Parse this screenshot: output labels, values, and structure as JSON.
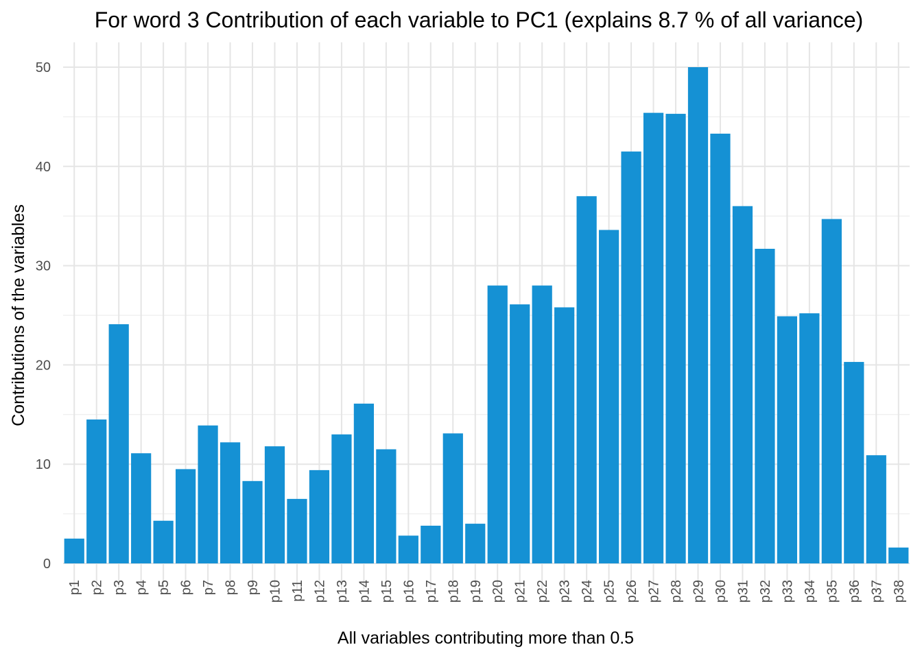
{
  "chart_data": {
    "type": "bar",
    "title": "For word 3 Contribution of each variable to PC1 (explains 8.7 % of all variance)",
    "xlabel": "All variables contributing more than 0.5",
    "ylabel": "Contributions of the variables",
    "categories": [
      "p1",
      "p2",
      "p3",
      "p4",
      "p5",
      "p6",
      "p7",
      "p8",
      "p9",
      "p10",
      "p11",
      "p12",
      "p13",
      "p14",
      "p15",
      "p16",
      "p17",
      "p18",
      "p19",
      "p20",
      "p21",
      "p22",
      "p23",
      "p24",
      "p25",
      "p26",
      "p27",
      "p28",
      "p29",
      "p30",
      "p31",
      "p32",
      "p33",
      "p34",
      "p35",
      "p36",
      "p37",
      "p38"
    ],
    "values": [
      2.5,
      14.5,
      24.1,
      11.1,
      4.3,
      9.5,
      13.9,
      12.2,
      8.3,
      11.8,
      6.5,
      9.4,
      13.0,
      16.1,
      11.5,
      2.8,
      3.8,
      13.1,
      4.0,
      28.0,
      26.1,
      28.0,
      25.8,
      37.0,
      33.6,
      41.5,
      45.4,
      45.3,
      50.0,
      43.3,
      36.0,
      31.7,
      24.9,
      25.2,
      34.7,
      20.3,
      10.9,
      1.6
    ],
    "ylim": [
      0,
      52.5
    ],
    "yticks": [
      0,
      10,
      20,
      30,
      40,
      50
    ],
    "bar_color": "#1591d4",
    "grid": true,
    "legend": "none"
  }
}
